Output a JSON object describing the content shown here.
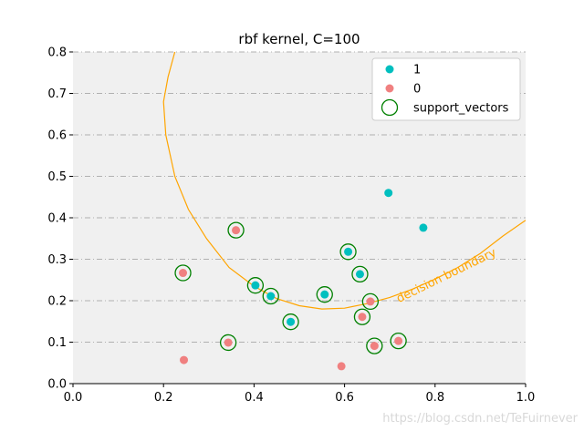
{
  "chart_data": {
    "type": "scatter",
    "title": "rbf kernel, C=100",
    "xlabel": "",
    "ylabel": "",
    "xlim": [
      0.0,
      1.0
    ],
    "ylim": [
      0.0,
      0.8
    ],
    "xticks": [
      "0.0",
      "0.2",
      "0.4",
      "0.6",
      "0.8",
      "1.0"
    ],
    "yticks": [
      "0.0",
      "0.1",
      "0.2",
      "0.3",
      "0.4",
      "0.5",
      "0.6",
      "0.7",
      "0.8"
    ],
    "grid": "horizontal dash-dot",
    "legend_position": "top-right",
    "series": [
      {
        "name": "1",
        "color": "#00BFBF",
        "points": [
          [
            0.403,
            0.237
          ],
          [
            0.437,
            0.211
          ],
          [
            0.481,
            0.149
          ],
          [
            0.556,
            0.215
          ],
          [
            0.608,
            0.318
          ],
          [
            0.634,
            0.264
          ],
          [
            0.697,
            0.46
          ],
          [
            0.774,
            0.376
          ]
        ]
      },
      {
        "name": "0",
        "color": "#F08080",
        "points": [
          [
            0.243,
            0.267
          ],
          [
            0.245,
            0.057
          ],
          [
            0.343,
            0.099
          ],
          [
            0.36,
            0.37
          ],
          [
            0.593,
            0.042
          ],
          [
            0.639,
            0.161
          ],
          [
            0.657,
            0.198
          ],
          [
            0.666,
            0.091
          ],
          [
            0.719,
            0.103
          ]
        ]
      },
      {
        "name": "support_vectors",
        "color": "#008000",
        "marker": "hollow-circle",
        "points": [
          [
            0.243,
            0.267
          ],
          [
            0.343,
            0.099
          ],
          [
            0.36,
            0.37
          ],
          [
            0.403,
            0.237
          ],
          [
            0.437,
            0.211
          ],
          [
            0.481,
            0.149
          ],
          [
            0.556,
            0.215
          ],
          [
            0.608,
            0.318
          ],
          [
            0.634,
            0.264
          ],
          [
            0.639,
            0.161
          ],
          [
            0.657,
            0.198
          ],
          [
            0.666,
            0.091
          ],
          [
            0.719,
            0.103
          ]
        ]
      }
    ],
    "decision_boundary": {
      "color": "#FFA500",
      "label": "decision boundary",
      "points": [
        [
          0.225,
          0.8
        ],
        [
          0.21,
          0.74
        ],
        [
          0.2,
          0.68
        ],
        [
          0.205,
          0.6
        ],
        [
          0.225,
          0.5
        ],
        [
          0.255,
          0.42
        ],
        [
          0.295,
          0.35
        ],
        [
          0.345,
          0.28
        ],
        [
          0.4,
          0.235
        ],
        [
          0.45,
          0.205
        ],
        [
          0.5,
          0.188
        ],
        [
          0.55,
          0.18
        ],
        [
          0.6,
          0.182
        ],
        [
          0.65,
          0.193
        ],
        [
          0.7,
          0.208
        ],
        [
          0.75,
          0.228
        ],
        [
          0.8,
          0.252
        ],
        [
          0.85,
          0.28
        ],
        [
          0.9,
          0.314
        ],
        [
          0.95,
          0.356
        ],
        [
          1.0,
          0.394
        ]
      ]
    }
  },
  "watermark": "https://blog.csdn.net/TeFuirnever"
}
